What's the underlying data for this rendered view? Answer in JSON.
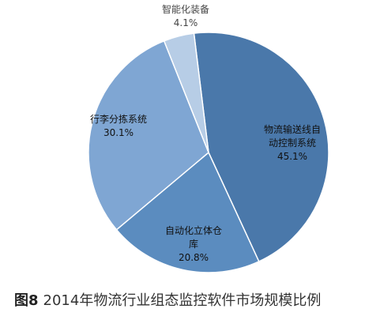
{
  "chart_data": {
    "type": "pie",
    "slices": [
      {
        "label_lines": [
          "物流输送线自",
          "动控制系统"
        ],
        "value": 45.1,
        "value_label": "45.1%",
        "color": "#4a78aa"
      },
      {
        "label_lines": [
          "自动化立体仓",
          "库"
        ],
        "value": 20.8,
        "value_label": "20.8%",
        "color": "#5b8cbf"
      },
      {
        "label_lines": [
          "行李分拣系统"
        ],
        "value": 30.1,
        "value_label": "30.1%",
        "color": "#7fa6d3"
      },
      {
        "label_lines": [
          "智能化装备"
        ],
        "value": 4.1,
        "value_label": "4.1%",
        "color": "#b7cde6"
      }
    ]
  },
  "caption": {
    "figure_label": "图8",
    "text": "2014年物流行业组态监控软件市场规模比例"
  }
}
